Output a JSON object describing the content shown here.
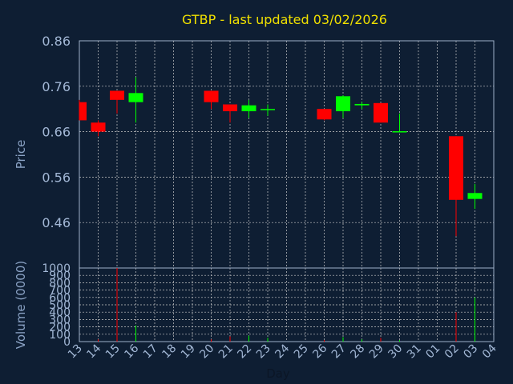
{
  "chart_data": {
    "type": "candlestick",
    "title": "GTBP - last updated 03/02/2026",
    "ylabel": "Price",
    "volume_label": "Volume (0000)",
    "xlabel": "Day",
    "ylim": [
      0.36,
      0.86
    ],
    "yticks": [
      "0.86",
      "0.76",
      "0.66",
      "0.56",
      "0.46"
    ],
    "volume_ylim": [
      0,
      1000
    ],
    "volume_ticks": [
      "1000",
      "900",
      "800",
      "700",
      "600",
      "500",
      "400",
      "300",
      "200",
      "100",
      "0"
    ],
    "x_ticks": [
      "13",
      "14",
      "15",
      "16",
      "17",
      "18",
      "19",
      "20",
      "21",
      "22",
      "23",
      "24",
      "25",
      "26",
      "27",
      "28",
      "29",
      "30",
      "31",
      "01",
      "02",
      "03",
      "04"
    ],
    "grid": true,
    "colors": {
      "up": "#00ff00",
      "down": "#ff0000",
      "title": "#f0e000",
      "background": "#0e1e33",
      "axis_text": "#a3b8d6"
    },
    "candles": [
      {
        "x": "13",
        "open": 0.725,
        "high": 0.73,
        "low": 0.685,
        "close": 0.685,
        "volume": 0
      },
      {
        "x": "14",
        "open": 0.68,
        "high": 0.685,
        "low": 0.65,
        "close": 0.66,
        "volume": 30
      },
      {
        "x": "15",
        "open": 0.75,
        "high": 0.75,
        "low": 0.7,
        "close": 0.73,
        "volume": 1000
      },
      {
        "x": "16",
        "open": 0.725,
        "high": 0.78,
        "low": 0.68,
        "close": 0.745,
        "volume": 220
      },
      {
        "x": "20",
        "open": 0.75,
        "high": 0.75,
        "low": 0.71,
        "close": 0.725,
        "volume": 30
      },
      {
        "x": "21",
        "open": 0.72,
        "high": 0.72,
        "low": 0.68,
        "close": 0.705,
        "volume": 70
      },
      {
        "x": "22",
        "open": 0.705,
        "high": 0.73,
        "low": 0.69,
        "close": 0.718,
        "volume": 80
      },
      {
        "x": "23",
        "open": 0.708,
        "high": 0.72,
        "low": 0.695,
        "close": 0.71,
        "volume": 50
      },
      {
        "x": "26",
        "open": 0.71,
        "high": 0.71,
        "low": 0.685,
        "close": 0.687,
        "volume": 20
      },
      {
        "x": "27",
        "open": 0.705,
        "high": 0.74,
        "low": 0.69,
        "close": 0.738,
        "volume": 60
      },
      {
        "x": "28",
        "open": 0.718,
        "high": 0.725,
        "low": 0.71,
        "close": 0.721,
        "volume": 30
      },
      {
        "x": "29",
        "open": 0.723,
        "high": 0.723,
        "low": 0.68,
        "close": 0.68,
        "volume": 50
      },
      {
        "x": "30",
        "open": 0.66,
        "high": 0.7,
        "low": 0.66,
        "close": 0.661,
        "volume": 20
      },
      {
        "x": "02",
        "open": 0.65,
        "high": 0.65,
        "low": 0.43,
        "close": 0.51,
        "volume": 400
      },
      {
        "x": "03",
        "open": 0.512,
        "high": 0.545,
        "low": 0.49,
        "close": 0.525,
        "volume": 600
      }
    ]
  }
}
